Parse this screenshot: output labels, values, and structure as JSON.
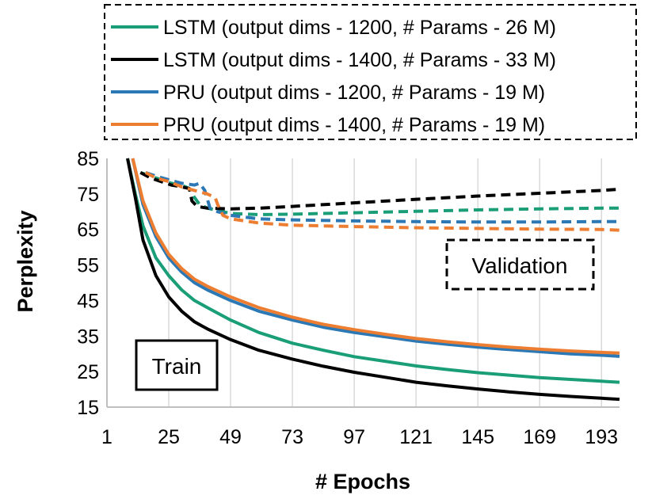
{
  "chart_data": {
    "type": "line",
    "title": "",
    "xlabel": "# Epochs",
    "ylabel": "Perplexity",
    "xlim": [
      1,
      200
    ],
    "ylim": [
      15,
      85
    ],
    "xticks": [
      1,
      25,
      49,
      73,
      97,
      121,
      145,
      169,
      193
    ],
    "xtick_labels": [
      "1",
      "25",
      "49",
      "73",
      "97",
      "121",
      "145",
      "169",
      "193"
    ],
    "yticks": [
      15,
      25,
      35,
      45,
      55,
      65,
      75,
      85
    ],
    "ytick_labels": [
      "15",
      "25",
      "35",
      "45",
      "55",
      "65",
      "75",
      "85"
    ],
    "grid": "vertical",
    "legend_position": "top",
    "legend": [
      {
        "label": "LSTM (output dims - 1200, # Params - 26 M)",
        "color": "#1a9e77"
      },
      {
        "label": "LSTM (output dims - 1400, # Params - 33 M)",
        "color": "#000000"
      },
      {
        "label": "PRU (output dims - 1200, # Params - 19 M)",
        "color": "#2b78b5"
      },
      {
        "label": "PRU (output dims - 1400, # Params - 19 M)",
        "color": "#ed7d31"
      }
    ],
    "annotations": [
      "Train",
      "Validation"
    ],
    "series": [
      {
        "name": "LSTM 1200 Train",
        "color": "#1a9e77",
        "style": "solid",
        "x": [
          9,
          12,
          15,
          20,
          25,
          30,
          35,
          40,
          49,
          60,
          73,
          85,
          97,
          110,
          121,
          133,
          145,
          157,
          169,
          181,
          193,
          200
        ],
        "y": [
          85,
          75,
          66,
          57,
          52,
          48,
          45,
          43,
          39.5,
          36,
          33,
          31,
          29.2,
          27.8,
          26.6,
          25.6,
          24.7,
          24,
          23.3,
          22.8,
          22.3,
          22
        ]
      },
      {
        "name": "LSTM 1400 Train",
        "color": "#000000",
        "style": "solid",
        "x": [
          9,
          12,
          15,
          20,
          25,
          30,
          35,
          40,
          49,
          60,
          73,
          85,
          97,
          110,
          121,
          133,
          145,
          157,
          169,
          181,
          193,
          200
        ],
        "y": [
          85,
          74,
          62,
          52,
          46,
          42,
          39,
          37,
          34,
          31,
          28.5,
          26.5,
          24.8,
          23.3,
          22,
          21,
          20.1,
          19.3,
          18.6,
          18,
          17.5,
          17.2
        ]
      },
      {
        "name": "PRU 1200 Train",
        "color": "#2b78b5",
        "style": "solid",
        "x": [
          11,
          15,
          20,
          25,
          30,
          35,
          40,
          49,
          60,
          73,
          85,
          97,
          110,
          121,
          133,
          145,
          157,
          169,
          181,
          193,
          200
        ],
        "y": [
          85,
          72,
          63,
          57,
          53,
          50,
          48,
          45,
          42,
          39.5,
          37.5,
          36,
          34.7,
          33.6,
          32.7,
          31.9,
          31.2,
          30.6,
          30,
          29.6,
          29.3
        ]
      },
      {
        "name": "PRU 1400 Train",
        "color": "#ed7d31",
        "style": "solid",
        "x": [
          11,
          15,
          20,
          25,
          30,
          35,
          40,
          49,
          60,
          73,
          85,
          97,
          110,
          121,
          133,
          145,
          157,
          169,
          181,
          193,
          200
        ],
        "y": [
          85,
          73,
          64,
          58,
          54,
          51,
          49,
          46,
          43,
          40.3,
          38.3,
          36.8,
          35.4,
          34.3,
          33.4,
          32.6,
          31.9,
          31.3,
          30.8,
          30.4,
          30.2
        ]
      },
      {
        "name": "LSTM 1200 Validation",
        "color": "#1a9e77",
        "style": "dashed",
        "x": [
          14,
          18,
          22,
          26,
          30,
          33,
          35,
          37,
          40,
          49,
          60,
          73,
          97,
          121,
          145,
          169,
          193,
          200
        ],
        "y": [
          81,
          80,
          79,
          78,
          77.5,
          76.5,
          74,
          72,
          71,
          69.5,
          69.2,
          69.3,
          69.7,
          70.1,
          70.5,
          70.8,
          71,
          71
        ]
      },
      {
        "name": "LSTM 1400 Validation",
        "color": "#000000",
        "style": "dashed",
        "x": [
          14,
          18,
          22,
          26,
          30,
          33,
          34,
          36,
          40,
          49,
          60,
          73,
          97,
          121,
          145,
          169,
          193,
          200
        ],
        "y": [
          81,
          79.5,
          78.5,
          77.5,
          77,
          76.5,
          73,
          71.5,
          71,
          70.8,
          71,
          71.5,
          72.5,
          73.5,
          74.4,
          75.2,
          76,
          76.3
        ]
      },
      {
        "name": "PRU 1200 Validation",
        "color": "#2b78b5",
        "style": "dashed",
        "x": [
          16,
          20,
          25,
          30,
          35,
          37,
          39,
          41,
          44,
          49,
          60,
          73,
          97,
          121,
          145,
          169,
          193,
          200
        ],
        "y": [
          81,
          80,
          79,
          78,
          77.5,
          78,
          76,
          71,
          70,
          69,
          68,
          67.7,
          67.4,
          67.2,
          67.1,
          67.1,
          67.2,
          67.2
        ]
      },
      {
        "name": "PRU 1400 Validation",
        "color": "#ed7d31",
        "style": "dashed",
        "x": [
          16,
          20,
          25,
          30,
          35,
          40,
          43,
          44,
          46,
          49,
          60,
          73,
          97,
          121,
          145,
          169,
          193,
          200
        ],
        "y": [
          81,
          79.5,
          78.5,
          77,
          76,
          75,
          74,
          72,
          69,
          68,
          66.8,
          66.2,
          65.8,
          65.5,
          65.3,
          65.1,
          65,
          64.8
        ]
      }
    ]
  }
}
